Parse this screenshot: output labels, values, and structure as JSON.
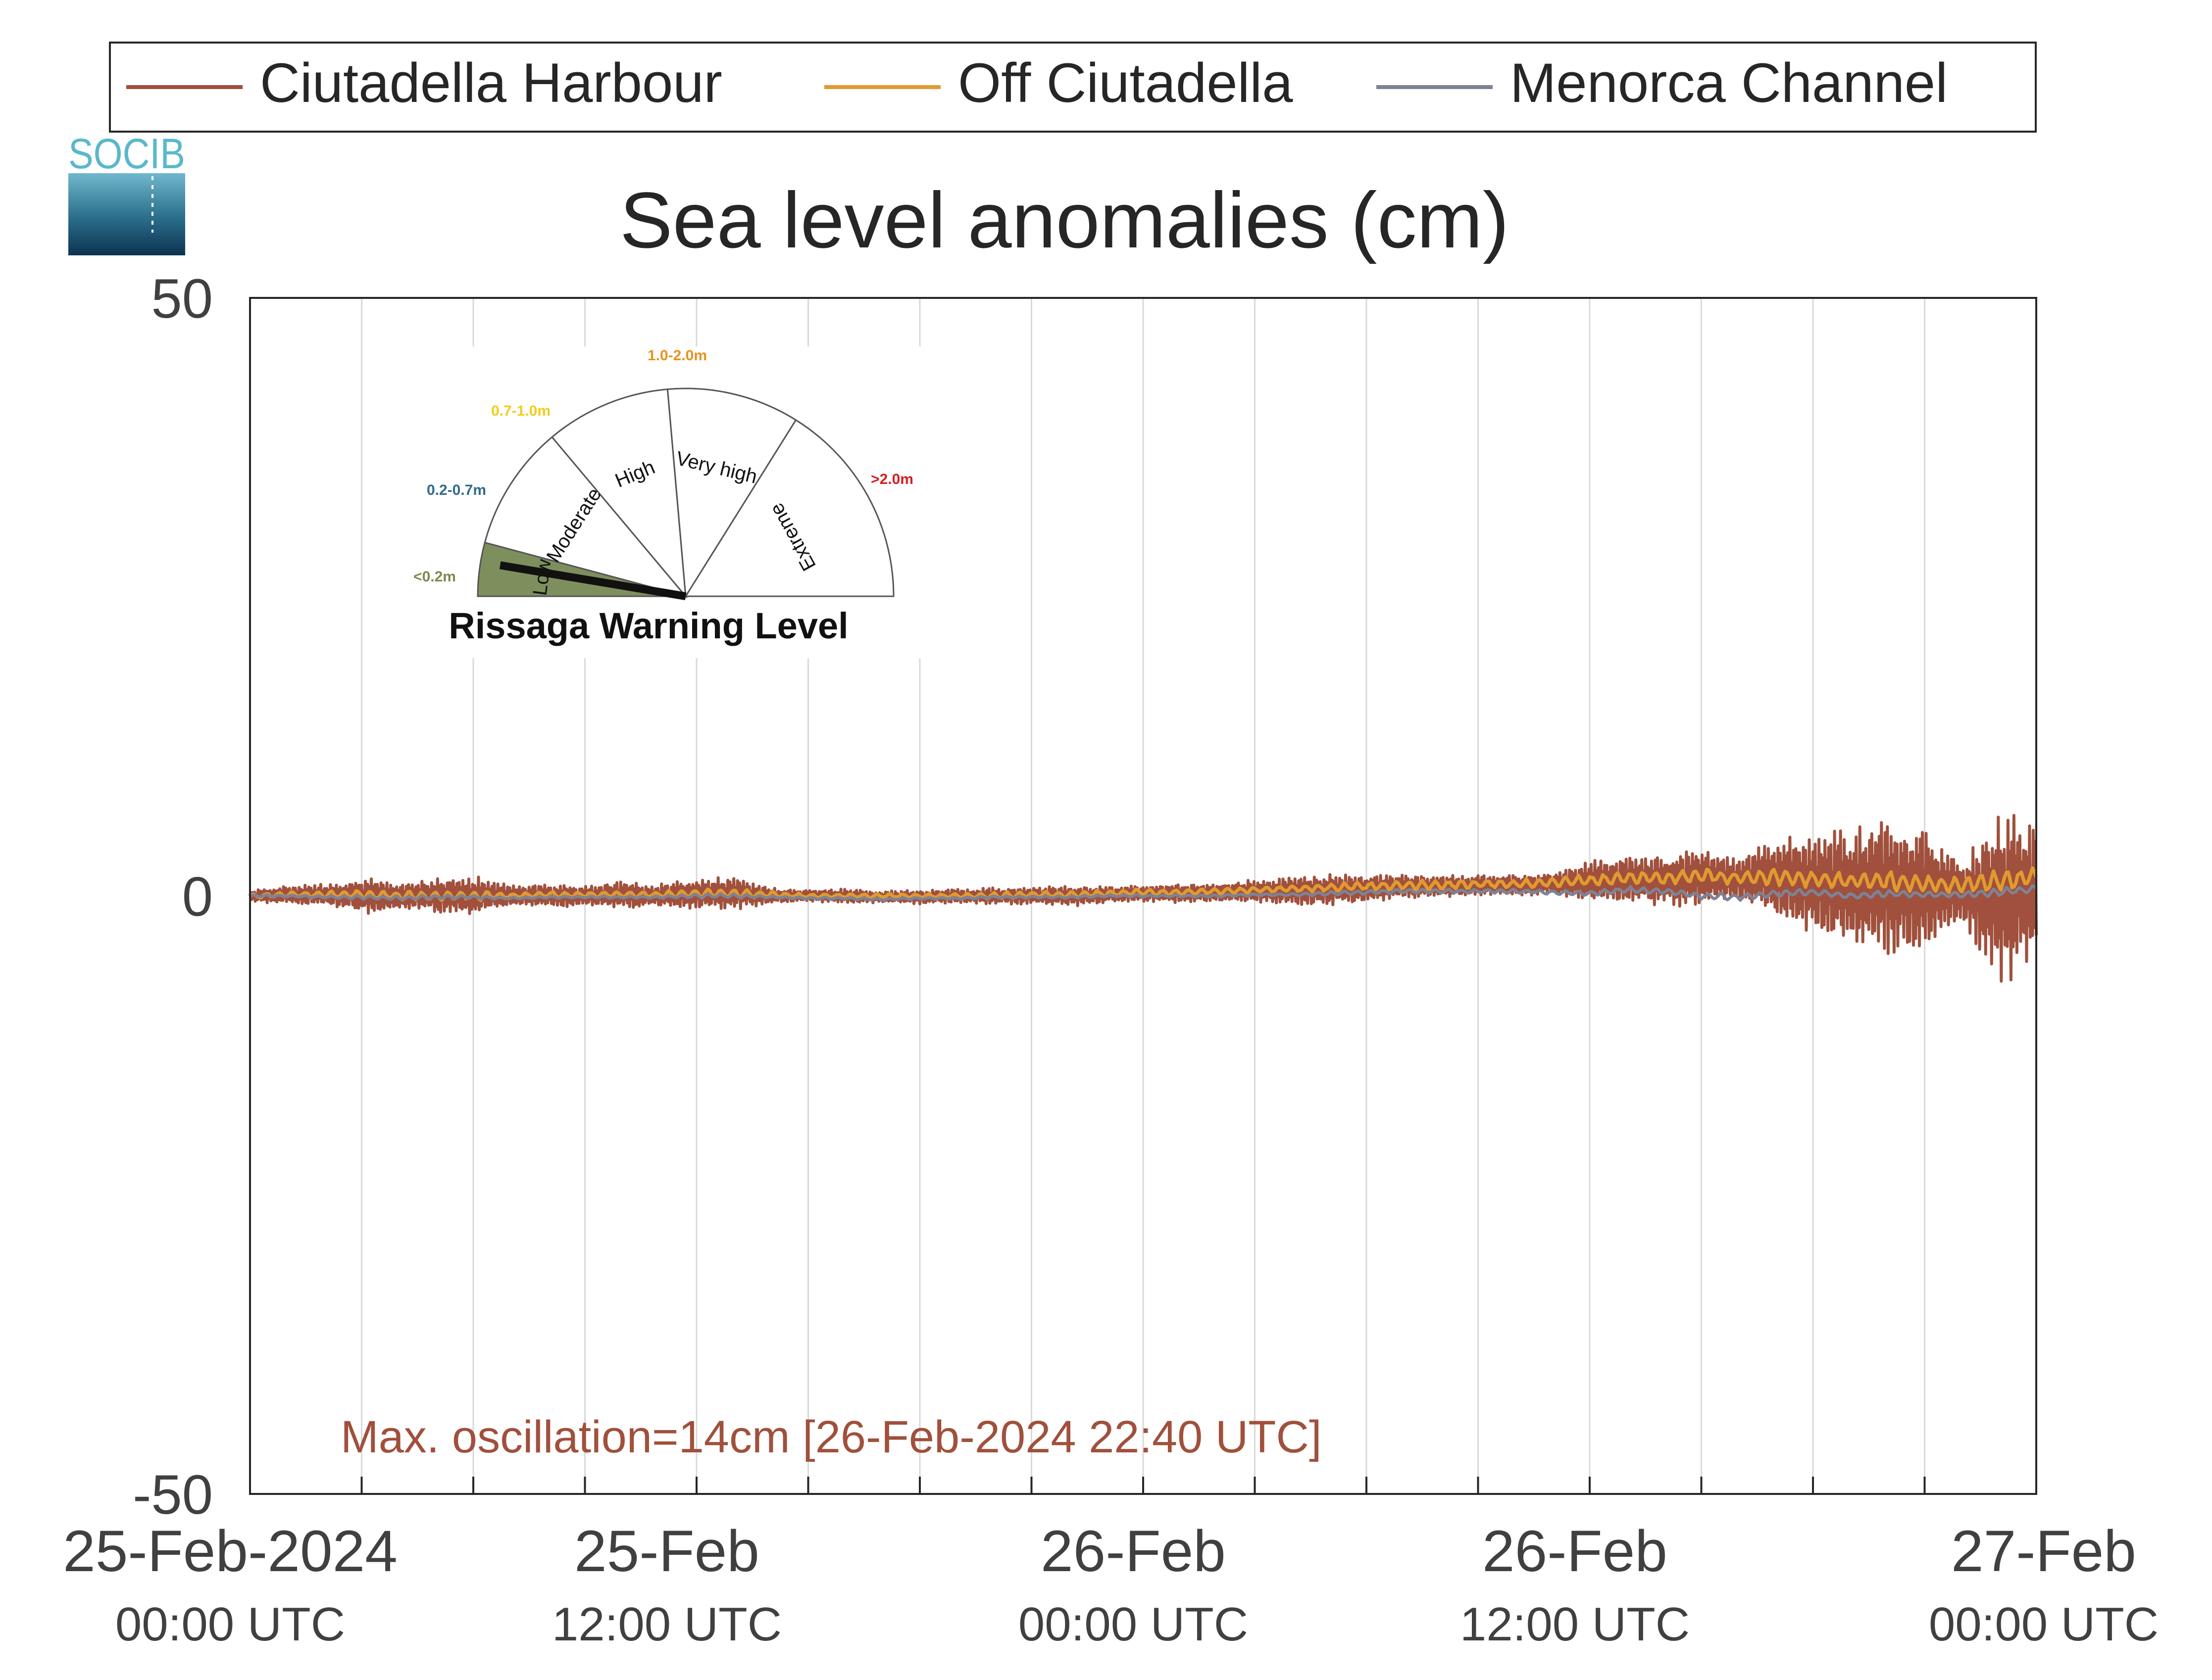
{
  "legend": {
    "entries": [
      {
        "label": "Ciutadella Harbour",
        "color": "#a0503c"
      },
      {
        "label": "Off Ciutadella",
        "color": "#e09a30"
      },
      {
        "label": "Menorca Channel",
        "color": "#7e8296"
      }
    ]
  },
  "logo": {
    "text": "SOCIB"
  },
  "chart_data": {
    "type": "line",
    "title": "Sea level anomalies (cm)",
    "xlabel": "",
    "ylabel": "",
    "ylim": [
      -50,
      50
    ],
    "yticks": [
      "50",
      "0",
      "-50"
    ],
    "xlim_hours": [
      0,
      48
    ],
    "xticks": [
      {
        "hour": 0,
        "date": "25-Feb-2024",
        "time": "00:00 UTC"
      },
      {
        "hour": 12,
        "date": "25-Feb",
        "time": "12:00 UTC"
      },
      {
        "hour": 24,
        "date": "26-Feb",
        "time": "00:00 UTC"
      },
      {
        "hour": 36,
        "date": "26-Feb",
        "time": "12:00 UTC"
      },
      {
        "hour": 48,
        "date": "27-Feb",
        "time": "00:00 UTC"
      }
    ],
    "grid": true,
    "legend_position": "top",
    "series": [
      {
        "name": "Ciutadella Harbour",
        "color": "#a0503c",
        "x_hours": [
          0,
          1,
          2,
          3,
          4,
          5,
          6,
          7,
          8,
          9,
          10,
          11,
          12,
          13,
          14,
          15,
          16,
          17,
          18,
          19,
          20,
          21,
          22,
          23,
          24,
          25,
          26,
          27,
          28,
          29,
          30,
          31,
          32,
          33,
          34,
          35,
          36,
          37,
          38,
          39,
          40,
          41,
          42,
          43,
          44,
          45,
          46,
          47,
          48
        ],
        "envelope_cm": [
          0.5,
          0.8,
          0.9,
          1.6,
          1.2,
          1.5,
          1.7,
          1.0,
          1.0,
          0.9,
          1.2,
          1.0,
          1.3,
          1.4,
          0.7,
          0.5,
          0.6,
          0.5,
          0.6,
          0.6,
          0.7,
          0.7,
          0.9,
          0.7,
          0.7,
          0.8,
          0.8,
          1.0,
          1.2,
          1.3,
          1.2,
          1.0,
          0.9,
          0.9,
          0.9,
          0.9,
          1.8,
          2.0,
          2.2,
          2.5,
          1.6,
          3.5,
          4.5,
          5.0,
          6.0,
          5.5,
          2.5,
          7.5,
          6.0
        ],
        "mean_cm": [
          0,
          0.1,
          0.1,
          0,
          0,
          0,
          0,
          0,
          0,
          0,
          0.1,
          0,
          0.2,
          0.2,
          0,
          0,
          0,
          -0.1,
          -0.1,
          0,
          0,
          0,
          0,
          0.1,
          0.2,
          0.2,
          0.3,
          0.4,
          0.4,
          0.5,
          0.6,
          0.8,
          0.8,
          0.9,
          0.9,
          1.0,
          1.2,
          1.4,
          1.3,
          1.6,
          1.4,
          1.6,
          1.0,
          0.7,
          1.0,
          0.4,
          0.5,
          -0.3,
          0.5
        ]
      },
      {
        "name": "Off Ciutadella",
        "color": "#e09a30",
        "x_hours": [
          0,
          1,
          2,
          3,
          4,
          5,
          6,
          7,
          8,
          9,
          10,
          11,
          12,
          13,
          14,
          15,
          16,
          17,
          18,
          19,
          20,
          21,
          22,
          23,
          24,
          25,
          26,
          27,
          28,
          29,
          30,
          31,
          32,
          33,
          34,
          35,
          36,
          37,
          38,
          39,
          40,
          41,
          42,
          43,
          44,
          45,
          46,
          47,
          48
        ],
        "envelope_cm": [
          0.2,
          0.3,
          0.3,
          0.4,
          0.4,
          0.4,
          0.4,
          0.3,
          0.3,
          0.3,
          0.3,
          0.3,
          0.4,
          0.4,
          0.3,
          0.2,
          0.2,
          0.2,
          0.2,
          0.2,
          0.3,
          0.3,
          0.3,
          0.3,
          0.3,
          0.3,
          0.3,
          0.3,
          0.3,
          0.4,
          0.4,
          0.4,
          0.4,
          0.4,
          0.4,
          0.4,
          0.5,
          0.6,
          0.6,
          0.7,
          0.6,
          0.8,
          0.8,
          0.8,
          0.9,
          0.8,
          0.7,
          1.0,
          0.8
        ],
        "mean_cm": [
          0,
          0.1,
          0.1,
          0.1,
          0,
          0,
          0,
          0,
          0.1,
          0.1,
          0.1,
          0.1,
          0.2,
          0.2,
          0.1,
          0,
          0,
          0,
          0,
          0,
          0,
          0.1,
          0.1,
          0.2,
          0.3,
          0.3,
          0.4,
          0.5,
          0.6,
          0.7,
          0.8,
          0.9,
          0.9,
          1.0,
          1.0,
          1.1,
          1.3,
          1.5,
          1.5,
          1.7,
          1.5,
          1.6,
          1.4,
          1.2,
          1.3,
          1.0,
          0.9,
          1.2,
          1.6
        ]
      },
      {
        "name": "Menorca Channel",
        "color": "#7e8296",
        "x_hours": [
          0,
          1,
          2,
          3,
          4,
          5,
          6,
          7,
          8,
          9,
          10,
          11,
          12,
          13,
          14,
          15,
          16,
          17,
          18,
          19,
          20,
          21,
          22,
          23,
          24,
          25,
          26,
          27,
          28,
          29,
          30,
          31,
          32,
          33,
          34,
          35,
          36,
          37,
          38,
          39,
          40,
          41,
          42,
          43,
          44,
          45,
          46,
          47,
          48
        ],
        "envelope_cm": [
          0.1,
          0.1,
          0.1,
          0.2,
          0.2,
          0.2,
          0.2,
          0.1,
          0.1,
          0.1,
          0.1,
          0.1,
          0.2,
          0.2,
          0.1,
          0.1,
          0.1,
          0.1,
          0.1,
          0.1,
          0.1,
          0.1,
          0.1,
          0.1,
          0.1,
          0.1,
          0.1,
          0.1,
          0.1,
          0.2,
          0.2,
          0.2,
          0.2,
          0.2,
          0.2,
          0.2,
          0.2,
          0.3,
          0.3,
          0.3,
          0.3,
          0.3,
          0.3,
          0.3,
          0.3,
          0.3,
          0.3,
          0.4,
          0.3
        ],
        "mean_cm": [
          0,
          0,
          -0.1,
          -0.1,
          -0.2,
          -0.1,
          -0.1,
          -0.2,
          -0.1,
          -0.1,
          -0.1,
          -0.1,
          0,
          0,
          -0.1,
          -0.2,
          -0.2,
          -0.3,
          -0.2,
          -0.2,
          -0.1,
          -0.1,
          -0.1,
          0,
          0,
          0,
          0,
          0.1,
          0.1,
          0.2,
          0.3,
          0.4,
          0.4,
          0.4,
          0.4,
          0.3,
          0.2,
          0.5,
          0.4,
          0.0,
          -0.1,
          0.2,
          0.3,
          0.0,
          0.2,
          0.1,
          0.1,
          0.3,
          0.6
        ]
      }
    ],
    "annotation": {
      "text": "Max. oscillation=14cm [26-Feb-2024 22:40 UTC]",
      "color": "#a0503c"
    }
  },
  "gauge": {
    "title": "Rissaga Warning Level",
    "needle_level": "Low",
    "sectors": [
      {
        "label": "Low",
        "range": "<0.2m",
        "range_color": "#7a8a4e",
        "fill": "#7e8f5e"
      },
      {
        "label": "Moderate",
        "range": "0.2-0.7m",
        "range_color": "#2f6b8a",
        "fill": "#ffffff"
      },
      {
        "label": "High",
        "range": "0.7-1.0m",
        "range_color": "#f2cc1a",
        "fill": "#ffffff"
      },
      {
        "label": "Very high",
        "range": "1.0-2.0m",
        "range_color": "#e8921e",
        "fill": "#ffffff"
      },
      {
        "label": "Extreme",
        "range": ">2.0m",
        "range_color": "#d42020",
        "fill": "#ffffff"
      }
    ]
  }
}
